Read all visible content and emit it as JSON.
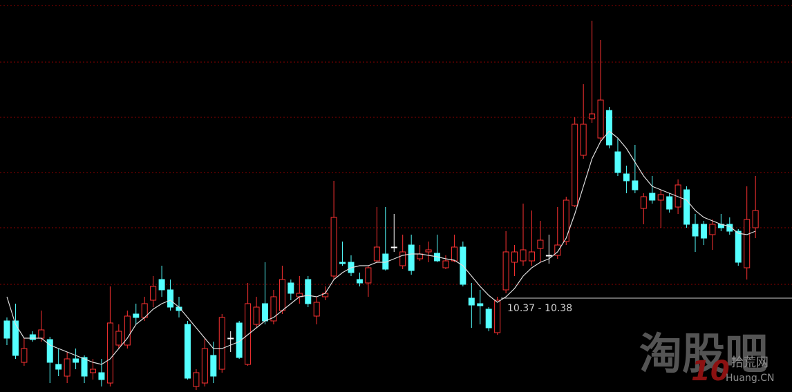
{
  "chart_data": {
    "type": "candlestick",
    "ylim": [
      9.01,
      14.69
    ],
    "yticks": [
      10.57,
      11.39,
      12.19,
      12.99,
      13.79,
      14.61
    ],
    "grid": true,
    "up_color": "#ff3232",
    "down_color": "#54ffff",
    "flat_color": "#ffffff",
    "ma_color": "#dddddd",
    "grid_color": "#8b0000",
    "open": [
      10.04,
      10.04,
      9.44,
      9.84,
      9.79,
      9.77,
      9.41,
      9.24,
      9.49,
      9.51,
      9.29,
      9.29,
      9.14,
      9.69,
      9.69,
      10.14,
      10.09,
      10.34,
      10.64,
      10.49,
      10.24,
      9.99,
      9.09,
      9.14,
      9.54,
      9.34,
      9.79,
      10.01,
      9.41,
      9.99,
      10.29,
      10.04,
      10.19,
      10.59,
      10.39,
      10.64,
      10.11,
      10.39,
      10.69,
      10.89,
      10.89,
      10.64,
      10.59,
      10.91,
      11.01,
      11.11,
      10.84,
      11.14,
      10.94,
      11.04,
      11.02,
      10.81,
      10.91,
      11.11,
      10.37,
      10.29,
      10.21,
      9.87,
      10.49,
      10.89,
      10.91,
      10.91,
      11.09,
      10.99,
      10.99,
      11.19,
      11.71,
      12.44,
      12.97,
      12.69,
      13.09,
      12.49,
      12.17,
      12.07,
      11.67,
      11.89,
      11.79,
      11.84,
      11.69,
      11.94,
      11.44,
      11.44,
      11.29,
      11.44,
      11.44,
      11.34,
      10.81,
      11.39
    ],
    "high": [
      10.09,
      10.29,
      9.79,
      9.89,
      10.19,
      9.81,
      9.64,
      9.59,
      9.64,
      9.54,
      9.49,
      9.49,
      10.54,
      9.99,
      10.19,
      10.29,
      10.39,
      10.69,
      10.84,
      10.64,
      10.39,
      10.04,
      9.34,
      9.79,
      9.74,
      10.14,
      9.89,
      10.04,
      10.59,
      10.39,
      10.89,
      10.49,
      10.84,
      10.64,
      10.69,
      10.69,
      10.39,
      10.54,
      12.07,
      11.19,
      10.99,
      10.74,
      10.84,
      11.69,
      11.69,
      11.59,
      11.29,
      11.29,
      11.14,
      11.19,
      11.29,
      10.99,
      11.29,
      11.19,
      10.59,
      10.49,
      10.24,
      10.39,
      11.34,
      11.14,
      11.74,
      11.64,
      11.49,
      11.29,
      11.69,
      11.84,
      12.99,
      13.47,
      14.39,
      14.11,
      13.14,
      12.69,
      12.29,
      12.59,
      11.89,
      12.14,
      11.94,
      11.89,
      12.09,
      11.99,
      11.59,
      11.49,
      11.51,
      11.59,
      11.54,
      11.37,
      11.99,
      12.14
    ],
    "low": [
      9.69,
      9.49,
      9.39,
      9.74,
      9.74,
      9.14,
      9.24,
      9.14,
      9.34,
      9.14,
      9.19,
      9.09,
      9.09,
      9.64,
      9.64,
      9.99,
      10.04,
      10.24,
      10.39,
      10.19,
      10.09,
      9.19,
      9.04,
      9.09,
      9.14,
      9.29,
      9.59,
      9.49,
      9.39,
      9.94,
      9.99,
      9.99,
      10.14,
      10.34,
      10.29,
      10.24,
      9.99,
      10.34,
      10.64,
      10.84,
      10.69,
      10.54,
      10.39,
      10.89,
      10.77,
      11.04,
      10.79,
      10.71,
      10.91,
      10.89,
      10.89,
      10.79,
      10.89,
      10.54,
      9.94,
      9.99,
      9.89,
      9.84,
      10.44,
      10.69,
      10.84,
      10.84,
      10.89,
      10.87,
      10.94,
      11.14,
      11.69,
      12.39,
      12.91,
      12.64,
      12.54,
      12.14,
      11.89,
      11.89,
      11.44,
      11.74,
      11.39,
      11.61,
      11.59,
      11.39,
      11.04,
      11.14,
      11.07,
      11.34,
      11.29,
      10.84,
      10.64,
      11.24
    ],
    "close": [
      9.79,
      9.54,
      9.64,
      9.77,
      9.91,
      9.44,
      9.34,
      9.49,
      9.44,
      9.24,
      9.34,
      9.19,
      10.01,
      9.89,
      10.11,
      10.09,
      10.29,
      10.54,
      10.49,
      10.24,
      10.19,
      9.21,
      9.29,
      9.64,
      9.24,
      10.09,
      9.79,
      9.51,
      10.29,
      10.24,
      10.04,
      10.39,
      10.64,
      10.44,
      10.44,
      10.29,
      10.31,
      10.44,
      11.54,
      10.87,
      10.74,
      10.59,
      10.81,
      11.11,
      10.79,
      11.11,
      11.04,
      10.77,
      11.01,
      11.07,
      10.91,
      10.91,
      11.11,
      10.57,
      10.27,
      10.26,
      9.94,
      10.34,
      11.04,
      11.04,
      11.07,
      11.04,
      11.21,
      10.99,
      11.14,
      11.79,
      12.89,
      12.89,
      13.04,
      13.24,
      12.59,
      12.19,
      12.07,
      11.94,
      11.84,
      11.79,
      11.87,
      11.66,
      12.01,
      11.44,
      11.27,
      11.24,
      11.44,
      11.39,
      11.34,
      10.89,
      11.51,
      11.64
    ],
    "ma": [
      10.39,
      9.99,
      9.79,
      9.79,
      9.79,
      9.69,
      9.64,
      9.59,
      9.54,
      9.49,
      9.44,
      9.41,
      9.49,
      9.64,
      9.79,
      9.99,
      10.09,
      10.21,
      10.29,
      10.34,
      10.24,
      10.09,
      9.94,
      9.79,
      9.64,
      9.64,
      9.69,
      9.74,
      9.84,
      9.94,
      10.04,
      10.09,
      10.19,
      10.29,
      10.39,
      10.41,
      10.39,
      10.44,
      10.64,
      10.74,
      10.81,
      10.84,
      10.84,
      10.89,
      10.89,
      10.94,
      10.99,
      11.01,
      11.01,
      10.99,
      10.97,
      10.94,
      10.92,
      10.84,
      10.69,
      10.54,
      10.41,
      10.31,
      10.39,
      10.51,
      10.69,
      10.81,
      10.89,
      10.94,
      11.04,
      11.24,
      11.59,
      11.99,
      12.39,
      12.64,
      12.79,
      12.69,
      12.54,
      12.34,
      12.14,
      11.99,
      11.94,
      11.89,
      11.84,
      11.79,
      11.64,
      11.54,
      11.49,
      11.44,
      11.41,
      11.31,
      11.29,
      11.34
    ],
    "annotation": "10.37 - 10.38",
    "watermarks": [
      "淘股吧",
      "10",
      "拾荒网",
      "Huang.CN"
    ]
  }
}
